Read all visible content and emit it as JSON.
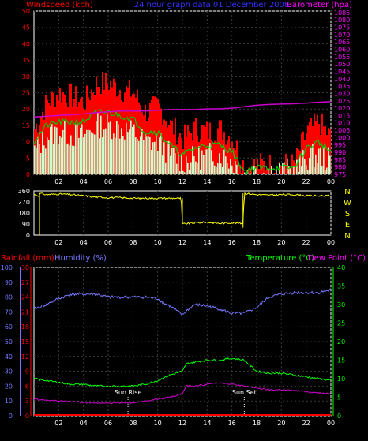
{
  "header": {
    "left_label": "Windspeed (kph)",
    "center_label": "24 hour graph data   01 December 2008",
    "right_label": "Barometer (hpa)"
  },
  "panel3": {
    "rainfall_label": "Rainfall (mm)",
    "humidity_label": "Humidity (%)",
    "temperature_label": "Temperature (°C)",
    "dewpoint_label": "Dew Point (°C)",
    "sunrise_label": "Sun Rise",
    "sunset_label": "Sun Set"
  },
  "colors": {
    "wind_gust": "#ff0000",
    "wind_avg": "#00cc00",
    "wind_speed": "#ccffcc",
    "barometer": "#cc00cc",
    "direction": "#ffff00",
    "humidity": "#7777ff",
    "temperature": "#00ff00",
    "dewpoint": "#cc00cc",
    "rainfall": "#ff0000",
    "left_axis": "#ff0000",
    "right_axis_baro": "#ff00ff",
    "dir_letters": "#ffff00",
    "rain_axis": "#ff0000",
    "hum_axis": "#7777ff",
    "temp_axis": "#00ff00"
  },
  "chart_data": [
    {
      "type": "line",
      "title": "24 hour graph data   01 December 2008",
      "x_ticks": [
        "02",
        "04",
        "06",
        "08",
        "10",
        "12",
        "14",
        "16",
        "18",
        "20",
        "22",
        "00"
      ],
      "x_range": [
        0,
        24
      ],
      "left_axis": {
        "label": "Windspeed (kph)",
        "ticks": [
          0,
          5,
          10,
          15,
          20,
          25,
          30,
          35,
          40,
          45,
          50
        ],
        "range": [
          0,
          50
        ]
      },
      "right_axis": {
        "label": "Barometer (hpa)",
        "ticks": [
          975,
          980,
          985,
          990,
          995,
          1000,
          1005,
          1010,
          1015,
          1020,
          1025,
          1030,
          1035,
          1040,
          1045,
          1050,
          1055,
          1060,
          1065,
          1070,
          1075,
          1080,
          1085
        ],
        "range": [
          975,
          1086
        ]
      },
      "series": [
        {
          "name": "Barometer (hpa)",
          "axis": "right",
          "x": [
            0,
            1,
            2,
            3,
            4,
            5,
            6,
            7,
            8,
            9,
            10,
            11,
            12,
            13,
            14,
            15,
            16,
            17,
            18,
            19,
            20,
            21,
            22,
            23,
            24
          ],
          "values": [
            1014,
            1014.5,
            1015,
            1015.5,
            1016,
            1017,
            1017.5,
            1018,
            1018,
            1018,
            1018.5,
            1019,
            1019,
            1019,
            1019.5,
            1019.5,
            1020,
            1021,
            1022,
            1022.5,
            1022.8,
            1023,
            1023.5,
            1024,
            1024.5
          ]
        },
        {
          "name": "gust",
          "axis": "left",
          "x": [
            0,
            1,
            2,
            3,
            4,
            5,
            6,
            7,
            8,
            9,
            10,
            11,
            12,
            13,
            14,
            15,
            16,
            17,
            18,
            19,
            20,
            21,
            22,
            23,
            24
          ],
          "values": [
            14,
            22,
            25,
            24,
            22,
            28,
            28,
            26,
            25,
            19,
            21,
            15,
            11,
            14,
            13,
            14,
            11,
            2,
            3,
            3,
            3,
            3,
            13,
            16,
            11
          ]
        },
        {
          "name": "average",
          "axis": "left",
          "x": [
            0,
            1,
            2,
            3,
            4,
            5,
            6,
            7,
            8,
            9,
            10,
            11,
            12,
            13,
            14,
            15,
            16,
            17,
            18,
            19,
            20,
            21,
            22,
            23,
            24
          ],
          "values": [
            10,
            15,
            16,
            16,
            16,
            19,
            19,
            18,
            17,
            13,
            13,
            9,
            6,
            8,
            9,
            9,
            7,
            1,
            2,
            2,
            2,
            2,
            8,
            10,
            7
          ]
        },
        {
          "name": "speed",
          "axis": "left",
          "x": [
            0,
            1,
            2,
            3,
            4,
            5,
            6,
            7,
            8,
            9,
            10,
            11,
            12,
            13,
            14,
            15,
            16,
            17,
            18,
            19,
            20,
            21,
            22,
            23,
            24
          ],
          "values": [
            7,
            12,
            13,
            12,
            12,
            15,
            15,
            14,
            13,
            10,
            10,
            6,
            4,
            5,
            6,
            6,
            4,
            0,
            1,
            1,
            1,
            1,
            5,
            6,
            4
          ]
        }
      ]
    },
    {
      "type": "line",
      "x_ticks": [
        "02",
        "04",
        "06",
        "08",
        "10",
        "12",
        "14",
        "16",
        "18",
        "20",
        "22",
        "00"
      ],
      "x_range": [
        0,
        24
      ],
      "left_axis": {
        "ticks": [
          0,
          90,
          180,
          270,
          360
        ],
        "range": [
          0,
          360
        ]
      },
      "right_axis": {
        "labels": [
          "N",
          "W",
          "S",
          "E",
          "N"
        ]
      },
      "series": [
        {
          "name": "Wind Direction",
          "x": [
            0,
            0.4,
            0.5,
            1,
            2,
            3,
            4,
            5,
            6,
            7,
            8,
            9,
            10,
            11,
            11.9,
            12,
            13,
            14,
            15,
            16,
            16.9,
            17,
            18,
            19,
            20,
            21,
            22,
            23,
            24
          ],
          "values": [
            330,
            320,
            340,
            330,
            335,
            330,
            320,
            310,
            305,
            305,
            300,
            300,
            300,
            300,
            300,
            90,
            100,
            105,
            95,
            100,
            95,
            340,
            330,
            325,
            330,
            330,
            320,
            320,
            320
          ]
        }
      ]
    },
    {
      "type": "line",
      "x_ticks": [
        "02",
        "04",
        "06",
        "08",
        "10",
        "12",
        "14",
        "16",
        "18",
        "20",
        "22",
        "00"
      ],
      "x_range": [
        0,
        24
      ],
      "left_axes": [
        {
          "label": "Rainfall (mm)",
          "ticks": [
            0,
            3,
            6,
            9,
            12,
            15,
            18,
            21,
            24,
            27,
            30
          ],
          "range": [
            0,
            30
          ]
        },
        {
          "label": "Humidity (%)",
          "ticks": [
            0,
            10,
            20,
            30,
            40,
            50,
            60,
            70,
            80,
            90,
            100
          ],
          "range": [
            0,
            100
          ]
        }
      ],
      "right_axis": {
        "label": "Temperature (°C) / Dew Point (°C)",
        "ticks": [
          0,
          5,
          10,
          15,
          20,
          25,
          30,
          35,
          40
        ],
        "range": [
          0,
          40
        ]
      },
      "annotations": [
        {
          "text": "Sun Rise",
          "x": 7.6
        },
        {
          "text": "Sun Set",
          "x": 17.0
        }
      ],
      "series": [
        {
          "name": "Humidity (%)",
          "axis": "humidity",
          "x": [
            0,
            1,
            2,
            3,
            4,
            5,
            6,
            7,
            8,
            9,
            10,
            10.5,
            11,
            12,
            12.5,
            13,
            14,
            15,
            16,
            17,
            18,
            19,
            20,
            21,
            22,
            23,
            24
          ],
          "values": [
            72,
            75,
            79,
            82,
            82,
            82,
            80,
            80,
            80,
            80,
            79,
            76,
            74,
            68,
            72,
            75,
            74,
            72,
            69,
            69,
            73,
            80,
            82,
            83,
            83,
            83,
            85
          ]
        },
        {
          "name": "Temperature (°C)",
          "axis": "right",
          "x": [
            0,
            1,
            2,
            3,
            4,
            5,
            6,
            7,
            8,
            9,
            10,
            11,
            12,
            12.3,
            13,
            14,
            15,
            16,
            17,
            18,
            19,
            20,
            21,
            22,
            23,
            24
          ],
          "values": [
            10,
            9.5,
            9,
            8.5,
            8.5,
            8,
            8,
            8,
            8,
            8.5,
            9.5,
            11,
            12,
            14,
            14.5,
            15,
            15,
            15.5,
            15,
            12,
            11.5,
            11.5,
            11,
            10.5,
            10,
            9.5
          ]
        },
        {
          "name": "Dew Point (°C)",
          "axis": "right",
          "x": [
            0,
            1,
            2,
            3,
            4,
            5,
            6,
            7,
            8,
            9,
            10,
            11,
            12,
            12.3,
            13,
            14,
            15,
            16,
            17,
            18,
            19,
            20,
            21,
            22,
            23,
            24
          ],
          "values": [
            4.5,
            4.2,
            4,
            3.8,
            3.6,
            3.5,
            3.5,
            3.5,
            3.5,
            4,
            4.5,
            5,
            6,
            8,
            8,
            8.5,
            9,
            8.5,
            8,
            7.5,
            7,
            7,
            6.8,
            6.5,
            6.2,
            6
          ]
        },
        {
          "name": "Rainfall (mm)",
          "axis": "rainfall",
          "x": [
            0,
            24
          ],
          "values": [
            0,
            0
          ]
        }
      ]
    }
  ]
}
